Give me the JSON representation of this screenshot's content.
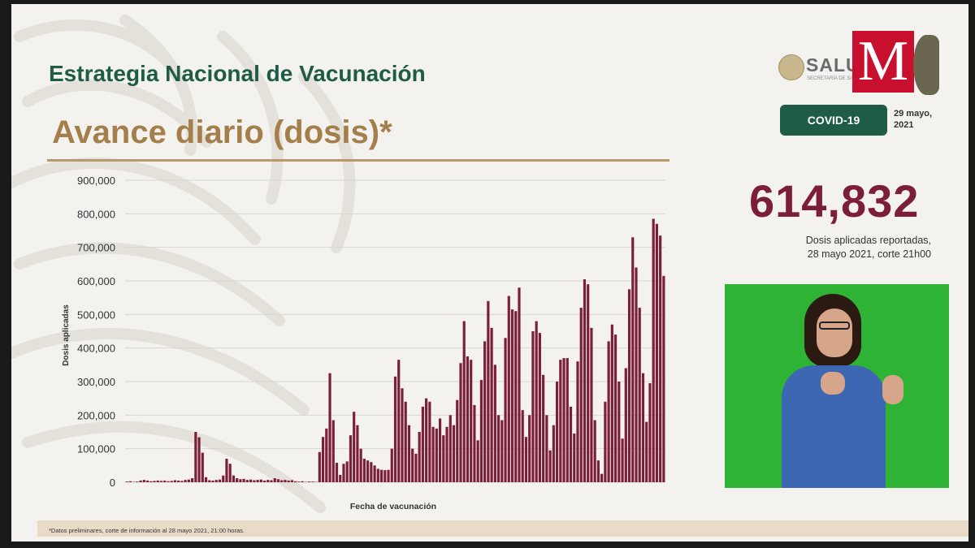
{
  "header": {
    "title": "Estrategia Nacional de Vacunación",
    "subtitle": "Avance diario (dosis)*"
  },
  "branding": {
    "salud_text": "SALUD",
    "salud_sub": "SECRETARÍA DE SALUD",
    "m_logo": "M"
  },
  "badge": {
    "label": "COVID-19",
    "date": "29 mayo,\n2021"
  },
  "highlight": {
    "value": "614,832",
    "caption_line1": "Dosis aplicadas reportadas,",
    "caption_line2": "28 mayo 2021, corte 21h00"
  },
  "footnote": "*Datos preliminares, corte de información al 28 mayo  2021, 21:00 horas.",
  "colors": {
    "bar": "#7b1e3a",
    "title_green": "#1f5c45",
    "subtitle_gold": "#a57f4b",
    "video_green": "#2fb335"
  },
  "chart_data": {
    "type": "bar",
    "xlabel": "Fecha de vacunación",
    "ylabel": "Dosis aplicadas",
    "ylim": [
      0,
      900000
    ],
    "yticks": [
      "0",
      "100,000",
      "200,000",
      "300,000",
      "400,000",
      "500,000",
      "600,000",
      "700,000",
      "800,000",
      "900,000"
    ],
    "grid": true,
    "values": [
      2000,
      3000,
      1000,
      2000,
      5000,
      7000,
      5000,
      3000,
      4000,
      5000,
      4000,
      5000,
      3000,
      4000,
      6000,
      5000,
      4000,
      7000,
      8000,
      12000,
      150000,
      134000,
      88000,
      15000,
      6000,
      5000,
      7000,
      8000,
      20000,
      70000,
      55000,
      20000,
      12000,
      9000,
      10000,
      7000,
      8000,
      6000,
      7000,
      8000,
      5000,
      7000,
      6000,
      12000,
      9000,
      6000,
      7000,
      5000,
      6000,
      3000,
      2000,
      3000,
      1000,
      2000,
      2000,
      1000,
      90000,
      135000,
      160000,
      325000,
      185000,
      58000,
      22000,
      55000,
      62000,
      140000,
      210000,
      170000,
      100000,
      70000,
      65000,
      60000,
      50000,
      40000,
      37000,
      36000,
      37000,
      100000,
      315000,
      365000,
      280000,
      240000,
      170000,
      100000,
      85000,
      150000,
      225000,
      250000,
      240000,
      165000,
      160000,
      190000,
      140000,
      165000,
      200000,
      170000,
      245000,
      355000,
      480000,
      375000,
      365000,
      230000,
      125000,
      305000,
      420000,
      540000,
      460000,
      350000,
      200000,
      185000,
      430000,
      555000,
      515000,
      510000,
      580000,
      215000,
      135000,
      200000,
      450000,
      480000,
      445000,
      320000,
      200000,
      95000,
      170000,
      300000,
      365000,
      370000,
      370000,
      225000,
      145000,
      360000,
      520000,
      605000,
      590000,
      460000,
      185000,
      65000,
      25000,
      240000,
      420000,
      470000,
      440000,
      300000,
      130000,
      340000,
      575000,
      730000,
      640000,
      520000,
      325000,
      180000,
      295000,
      785000,
      770000,
      735000,
      614832
    ]
  }
}
